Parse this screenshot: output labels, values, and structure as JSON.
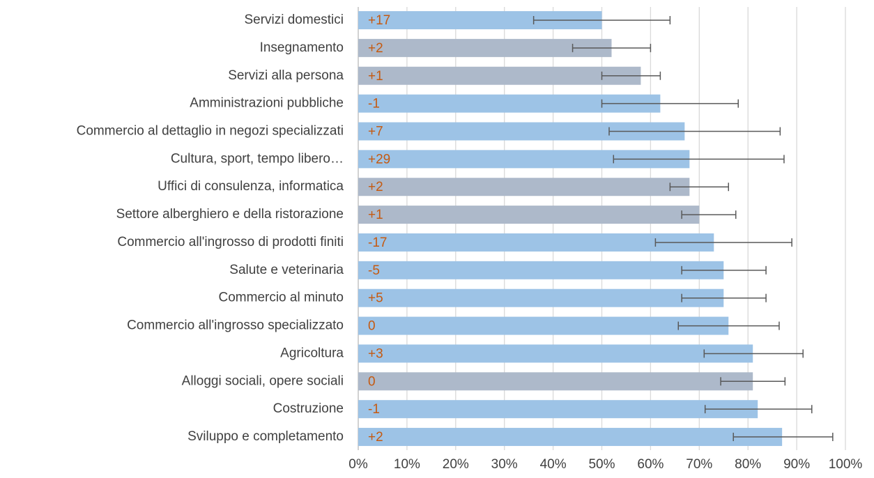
{
  "chart_data": {
    "type": "bar",
    "orientation": "horizontal",
    "categories": [
      "Servizi domestici",
      "Insegnamento",
      "Servizi alla persona",
      "Amministrazioni pubbliche",
      "Commercio al dettaglio in negozi specializzati",
      "Cultura, sport, tempo libero…",
      "Uffici di consulenza, informatica",
      "Settore alberghiero e della ristorazione",
      "Commercio all'ingrosso di prodotti finiti",
      "Salute e veterinaria",
      "Commercio al minuto",
      "Commercio all'ingrosso specializzato",
      "Agricoltura",
      "Alloggi sociali, opere sociali",
      "Costruzione",
      "Sviluppo e completamento"
    ],
    "values": [
      50,
      52,
      58,
      62,
      67,
      68,
      68,
      70,
      73,
      75,
      75,
      76,
      81,
      81,
      82,
      87
    ],
    "error_low": [
      36,
      44,
      50,
      50,
      51.5,
      52.4,
      64,
      66.4,
      61,
      66.4,
      66.4,
      65.7,
      71,
      74.4,
      71.2,
      77
    ],
    "error_high": [
      64,
      60,
      62,
      78,
      86.6,
      87.4,
      76,
      77.5,
      89,
      83.7,
      83.7,
      86.4,
      91.3,
      87.6,
      93.1,
      97.4
    ],
    "annotations": [
      "+17",
      "+2",
      "+1",
      "-1",
      "+7",
      "+29",
      "+2",
      "+1",
      "-17",
      "-5",
      "+5",
      "0",
      "+3",
      "0",
      "-1",
      "+2"
    ],
    "colors": [
      "#9dc3e6",
      "#adb9ca",
      "#adb9ca",
      "#9dc3e6",
      "#9dc3e6",
      "#9dc3e6",
      "#adb9ca",
      "#adb9ca",
      "#9dc3e6",
      "#9dc3e6",
      "#9dc3e6",
      "#9dc3e6",
      "#9dc3e6",
      "#adb9ca",
      "#9dc3e6",
      "#9dc3e6"
    ],
    "annotation_color": "#c55a11",
    "error_color": "#595959",
    "xlim": [
      0,
      100
    ],
    "xticks": [
      {
        "value": 0,
        "label": "0%"
      },
      {
        "value": 10,
        "label": "10%"
      },
      {
        "value": 20,
        "label": "20%"
      },
      {
        "value": 30,
        "label": "30%"
      },
      {
        "value": 40,
        "label": "40%"
      },
      {
        "value": 50,
        "label": "50%"
      },
      {
        "value": 60,
        "label": "60%"
      },
      {
        "value": 70,
        "label": "70%"
      },
      {
        "value": 80,
        "label": "80%"
      },
      {
        "value": 90,
        "label": "90%"
      },
      {
        "value": 100,
        "label": "100%"
      }
    ],
    "grid": true
  }
}
